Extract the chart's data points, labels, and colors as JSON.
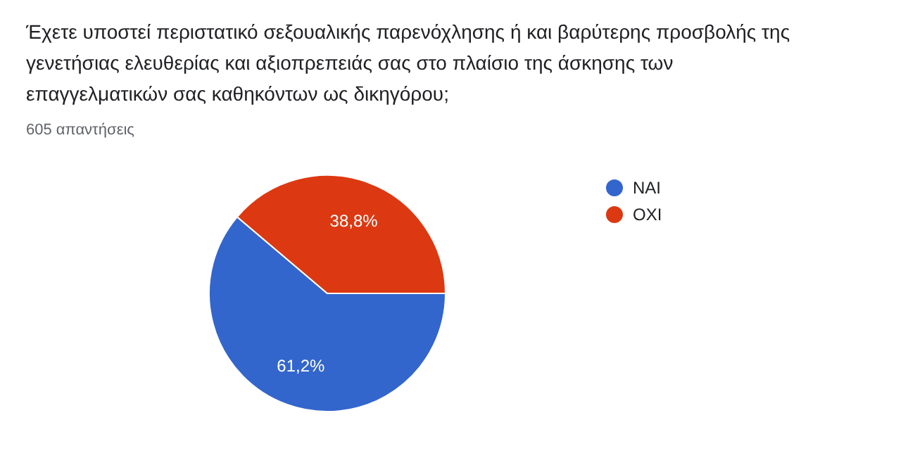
{
  "chart_data": {
    "type": "pie",
    "title": "Έχετε υποστεί περιστατικό σεξουαλικής παρενόχλησης ή και βαρύτερης προσβολής της γενετήσιας ελευθερίας και αξιοπρεπειάς σας στο πλαίσιο της άσκησης των επαγγελματικών σας καθηκόντων ως δικηγόρου;",
    "subtitle": "605 απαντήσεις",
    "categories": [
      "ΝΑΙ",
      "ΟΧΙ"
    ],
    "values": [
      61.2,
      38.8
    ],
    "colors": [
      "#3366cc",
      "#dc3912"
    ],
    "value_labels": [
      "61,2%",
      "38,8%"
    ],
    "legend": "top right"
  }
}
